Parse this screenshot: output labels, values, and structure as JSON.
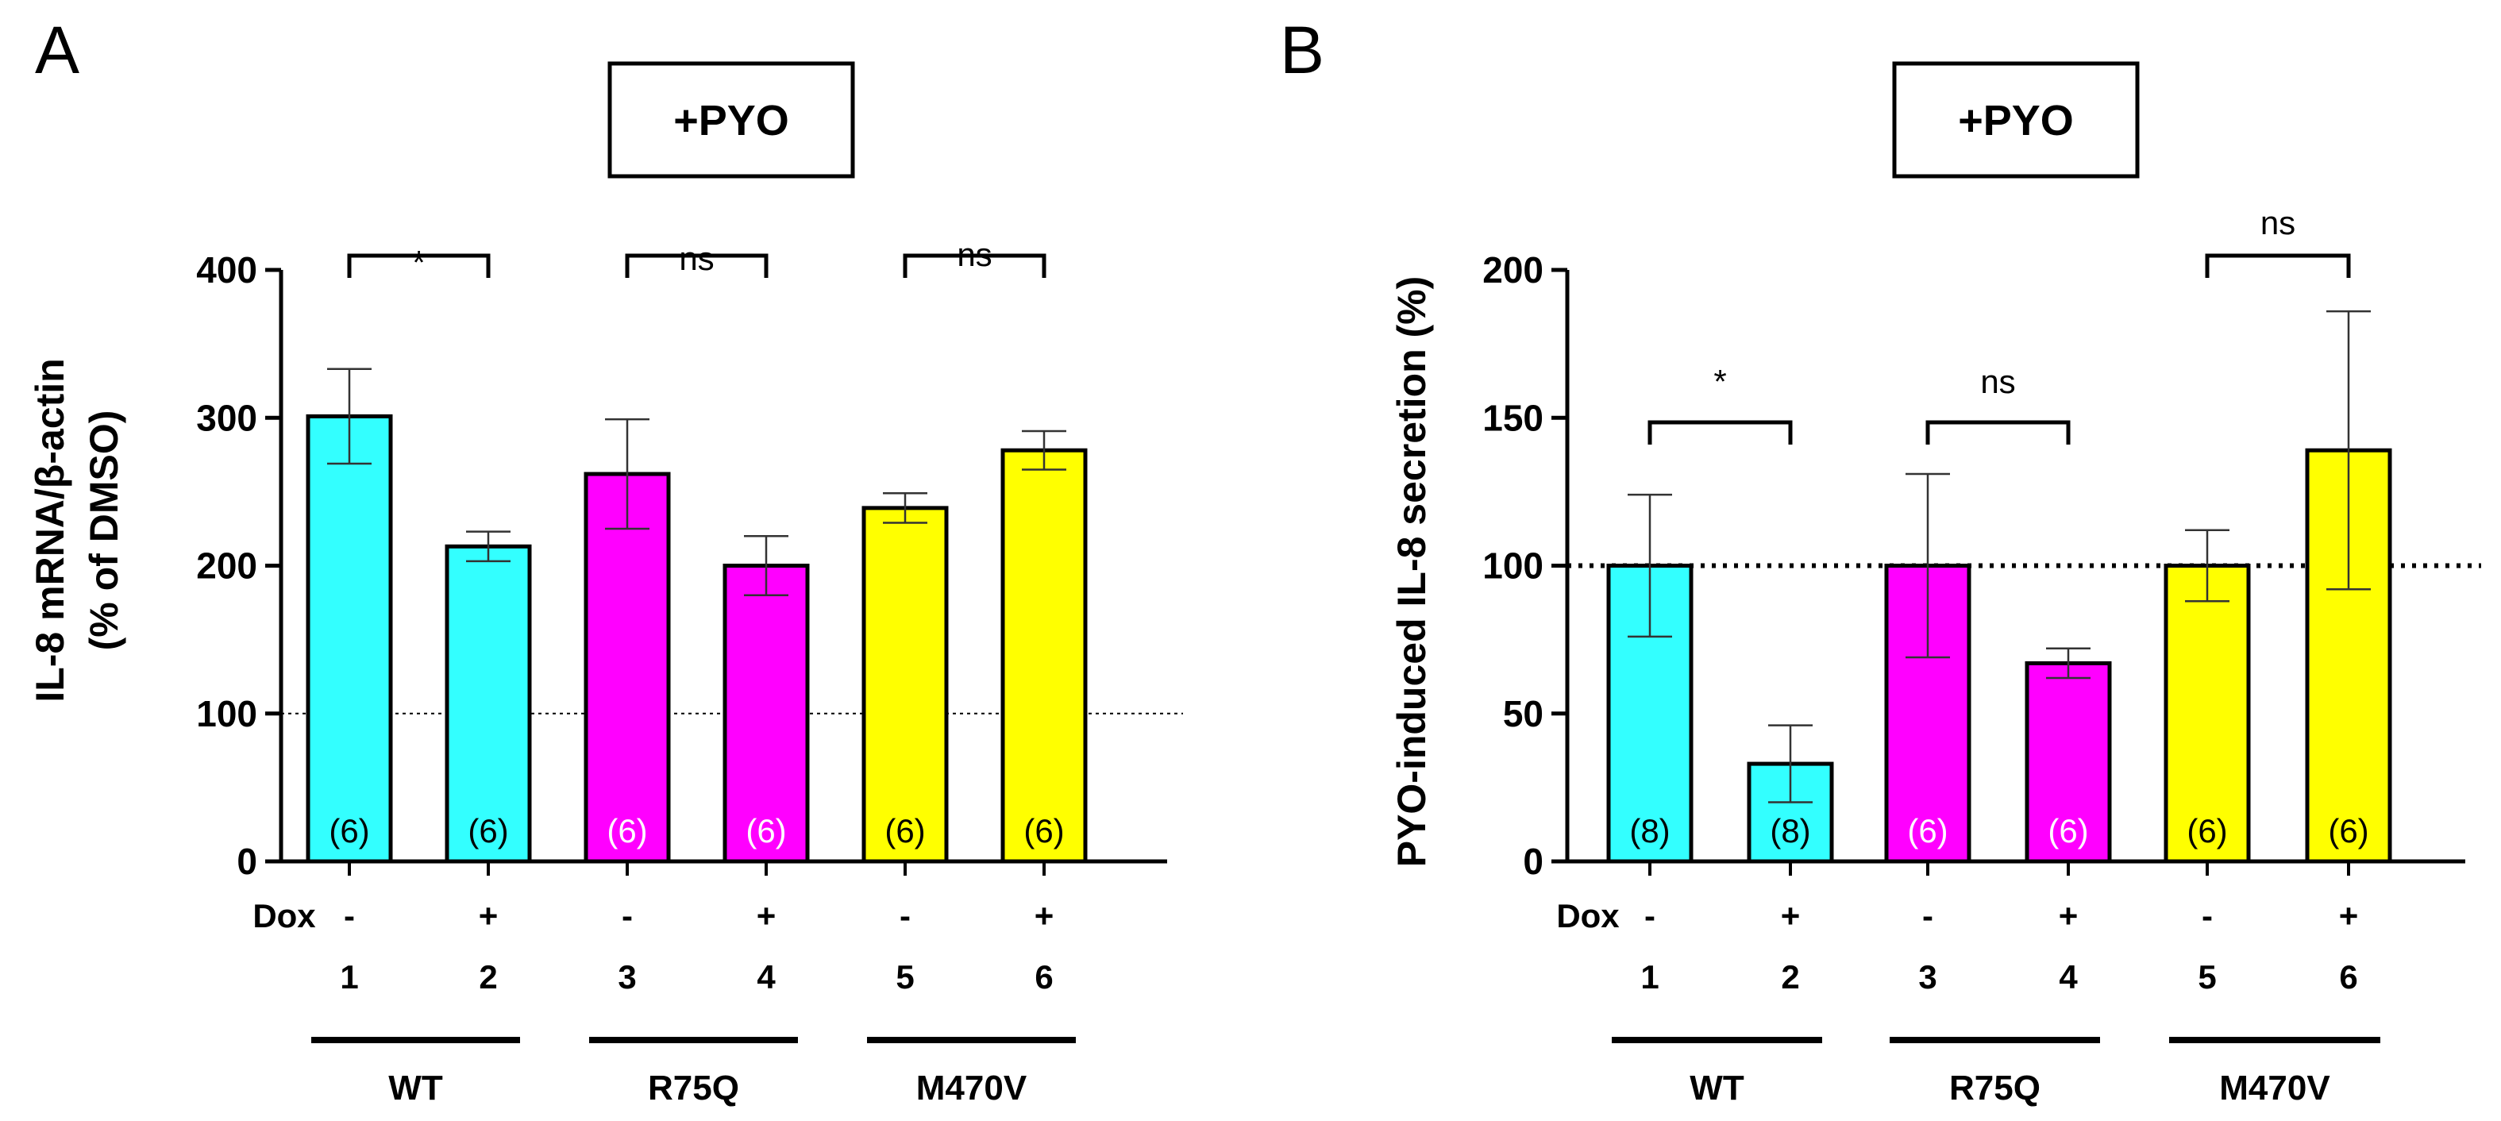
{
  "chart_data": [
    {
      "type": "bar",
      "panel": "A",
      "title": "+PYO",
      "ylabel_line1": "IL-8 mRNA/β-actin",
      "ylabel_line2": "(% of DMSO)",
      "ylim": [
        0,
        400
      ],
      "yticks": [
        0,
        100,
        200,
        300,
        400
      ],
      "reference_line": 100,
      "row_label": "Dox",
      "dox": [
        "-",
        "+",
        "-",
        "+",
        "-",
        "+"
      ],
      "categories": [
        "1",
        "2",
        "3",
        "4",
        "5",
        "6"
      ],
      "values": [
        301,
        213,
        262,
        200,
        239,
        278
      ],
      "errors": [
        32,
        10,
        37,
        20,
        10,
        13
      ],
      "n_labels": [
        "(6)",
        "(6)",
        "(6)",
        "(6)",
        "(6)",
        "(6)"
      ],
      "groups": [
        "WT",
        "R75Q",
        "M470V"
      ],
      "significance": [
        "*",
        "ns",
        "ns"
      ],
      "colors": [
        "#33ffff",
        "#33ffff",
        "#ff00ff",
        "#ff00ff",
        "#ffff00",
        "#ffff00"
      ],
      "n_label_colors": [
        "#000000",
        "#000000",
        "#ffffff",
        "#ffffff",
        "#000000",
        "#000000"
      ]
    },
    {
      "type": "bar",
      "panel": "B",
      "title": "+PYO",
      "ylabel_line1": "PYO-induced IL-8 secretion (%)",
      "ylabel_line2": "",
      "ylim": [
        0,
        200
      ],
      "yticks": [
        0,
        50,
        100,
        150,
        200
      ],
      "reference_line": 100,
      "row_label": "Dox",
      "dox": [
        "-",
        "+",
        "-",
        "+",
        "-",
        "+"
      ],
      "categories": [
        "1",
        "2",
        "3",
        "4",
        "5",
        "6"
      ],
      "values": [
        100,
        33,
        100,
        67,
        100,
        139
      ],
      "errors": [
        24,
        13,
        31,
        5,
        12,
        47
      ],
      "n_labels": [
        "(8)",
        "(8)",
        "(6)",
        "(6)",
        "(6)",
        "(6)"
      ],
      "groups": [
        "WT",
        "R75Q",
        "M470V"
      ],
      "significance": [
        "*",
        "ns",
        "ns"
      ],
      "colors": [
        "#33ffff",
        "#33ffff",
        "#ff00ff",
        "#ff00ff",
        "#ffff00",
        "#ffff00"
      ],
      "n_label_colors": [
        "#000000",
        "#000000",
        "#ffffff",
        "#ffffff",
        "#000000",
        "#000000"
      ]
    }
  ]
}
